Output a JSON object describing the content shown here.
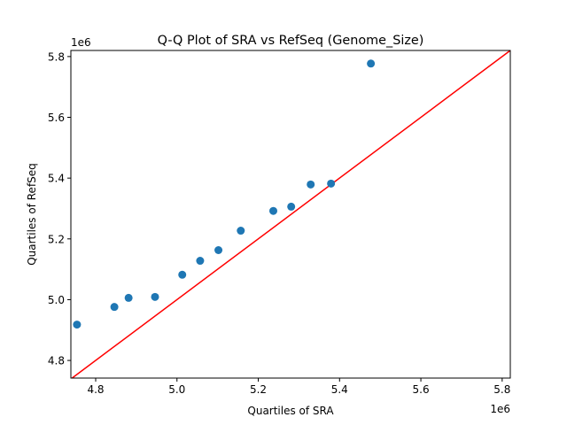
{
  "chart_data": {
    "type": "scatter",
    "title": "Q-Q Plot of SRA vs RefSeq (Genome_Size)",
    "xlabel": "Quartiles of SRA",
    "ylabel": "Quartiles of RefSeq",
    "x_offset_label": "1e6",
    "y_offset_label": "1e6",
    "xlim": [
      4.739,
      5.82
    ],
    "ylim": [
      4.742,
      5.82
    ],
    "xticks": [
      "4.8",
      "5.0",
      "5.2",
      "5.4",
      "5.6",
      "5.8"
    ],
    "yticks": [
      "4.8",
      "5.0",
      "5.2",
      "5.4",
      "5.6",
      "5.8"
    ],
    "grid": false,
    "point_color": "#1f77b4",
    "line_color": "#ff0000",
    "reference_line": "y = x",
    "points": [
      {
        "x": 4.754,
        "y": 4.918
      },
      {
        "x": 4.846,
        "y": 4.976
      },
      {
        "x": 4.881,
        "y": 5.006
      },
      {
        "x": 4.946,
        "y": 5.009
      },
      {
        "x": 5.013,
        "y": 5.082
      },
      {
        "x": 5.057,
        "y": 5.128
      },
      {
        "x": 5.102,
        "y": 5.163
      },
      {
        "x": 5.157,
        "y": 5.227
      },
      {
        "x": 5.237,
        "y": 5.292
      },
      {
        "x": 5.281,
        "y": 5.306
      },
      {
        "x": 5.329,
        "y": 5.379
      },
      {
        "x": 5.379,
        "y": 5.382
      },
      {
        "x": 5.477,
        "y": 5.777
      }
    ]
  }
}
